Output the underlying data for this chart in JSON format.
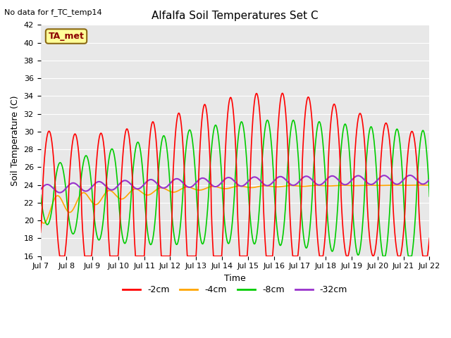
{
  "title": "Alfalfa Soil Temperatures Set C",
  "xlabel": "Time",
  "ylabel": "Soil Temperature (C)",
  "note": "No data for f_TC_temp14",
  "legend_label": "TA_met",
  "ylim": [
    16,
    42
  ],
  "xlim": [
    0,
    15
  ],
  "yticks": [
    16,
    18,
    20,
    22,
    24,
    26,
    28,
    30,
    32,
    34,
    36,
    38,
    40,
    42
  ],
  "xtick_labels": [
    "Jul 7",
    "Jul 8",
    "Jul 9",
    "Jul 10",
    "Jul 11",
    "Jul 12",
    "Jul 13",
    "Jul 14",
    "Jul 15",
    "Jul 16",
    "Jul 17",
    "Jul 18",
    "Jul 19",
    "Jul 20",
    "Jul 21",
    "Jul 22"
  ],
  "colors": {
    "-2cm": "#ff0000",
    "-4cm": "#ffa500",
    "-8cm": "#00cc00",
    "-32cm": "#9932cc"
  },
  "line_width": 1.2,
  "bg_color": "#e8e8e8",
  "note_fontsize": 8,
  "axis_fontsize": 9,
  "title_fontsize": 11,
  "tick_fontsize": 8
}
